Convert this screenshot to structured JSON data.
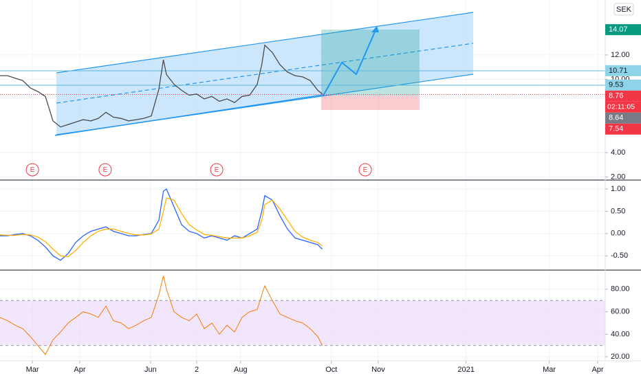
{
  "chart_data": [
    {
      "type": "line",
      "currency": "SEK",
      "color": "#4a4a4a",
      "x": [
        0,
        5,
        10,
        15,
        20,
        25,
        30,
        35,
        40,
        45,
        50,
        55,
        60,
        65,
        70,
        75,
        80,
        85,
        90,
        95,
        100,
        105,
        108,
        110,
        115,
        120,
        125,
        130,
        135,
        140,
        145,
        150,
        155,
        160,
        165,
        170,
        173,
        175,
        180,
        185,
        190,
        195,
        200,
        205,
        210,
        213
      ],
      "values": [
        10.3,
        10.3,
        10.1,
        9.9,
        9.3,
        9.0,
        8.6,
        6.6,
        6.1,
        6.3,
        6.5,
        6.7,
        6.6,
        6.8,
        7.3,
        6.9,
        6.8,
        6.6,
        6.7,
        6.8,
        7.0,
        9.2,
        11.6,
        10.4,
        9.6,
        9.1,
        8.7,
        8.8,
        8.4,
        8.6,
        8.2,
        8.4,
        8.1,
        8.6,
        8.7,
        9.6,
        11.2,
        12.8,
        12.2,
        11.2,
        10.6,
        10.3,
        10.2,
        9.9,
        9.1,
        8.8
      ],
      "xlim": [
        0,
        400
      ],
      "ylim": [
        1.75,
        16.5
      ],
      "yticks": [
        {
          "value": 2,
          "label": "2.00"
        },
        {
          "value": 4,
          "label": "4.00"
        },
        {
          "value": 10,
          "label": "10.00"
        },
        {
          "value": 12,
          "label": "12.00"
        }
      ],
      "price_labels": [
        {
          "value": 14.07,
          "color": "#089981",
          "text_color": "#ffffff"
        },
        {
          "value": 10.71,
          "color": "#8fd3e8",
          "text_color": "#131722"
        },
        {
          "value": 9.53,
          "color": "#8fd3e8",
          "text_color": "#131722"
        },
        {
          "value": 8.76,
          "color": "#f23645",
          "text_color": "#ffffff"
        },
        {
          "value": 8.64,
          "color": "#787b86",
          "text_color": "#ffffff"
        },
        {
          "value": 7.54,
          "color": "#f23645",
          "text_color": "#ffffff"
        }
      ],
      "countdown": "02:11:05",
      "earnings": [
        {
          "x": 21.4,
          "label": "E"
        },
        {
          "x": 69.5,
          "label": "E"
        },
        {
          "x": 143.2,
          "label": "E"
        },
        {
          "x": 241.4,
          "label": "E"
        }
      ]
    },
    {
      "type": "line",
      "ylim": [
        -0.82,
        1.2
      ],
      "yticks": [
        {
          "value": -0.5,
          "label": "-0.50"
        },
        {
          "value": 0,
          "label": "0.00"
        },
        {
          "value": 0.5,
          "label": "0.50"
        },
        {
          "value": 1,
          "label": "1.00"
        }
      ],
      "series": [
        {
          "color": "#2962ff",
          "values": [
            -0.05,
            -0.05,
            -0.02,
            0,
            -0.05,
            -0.15,
            -0.3,
            -0.5,
            -0.6,
            -0.45,
            -0.2,
            -0.05,
            0.05,
            0.1,
            0.15,
            0.05,
            0,
            -0.05,
            -0.05,
            -0.02,
            0,
            0.3,
            0.95,
            1.0,
            0.6,
            0.2,
            0.05,
            0,
            -0.1,
            -0.05,
            -0.1,
            -0.15,
            -0.05,
            -0.1,
            0,
            0.1,
            0.5,
            0.85,
            0.75,
            0.4,
            0.1,
            -0.1,
            -0.15,
            -0.2,
            -0.25,
            -0.35
          ]
        },
        {
          "color": "#ffb000",
          "values": [
            -0.03,
            -0.04,
            -0.04,
            -0.02,
            -0.03,
            -0.08,
            -0.18,
            -0.35,
            -0.5,
            -0.52,
            -0.38,
            -0.2,
            -0.05,
            0.05,
            0.1,
            0.1,
            0.05,
            0,
            -0.03,
            -0.03,
            -0.01,
            0.1,
            0.5,
            0.8,
            0.75,
            0.45,
            0.2,
            0.08,
            -0.02,
            -0.04,
            -0.07,
            -0.1,
            -0.1,
            -0.1,
            -0.05,
            0.03,
            0.3,
            0.65,
            0.75,
            0.55,
            0.3,
            0.05,
            -0.08,
            -0.15,
            -0.2,
            -0.28
          ]
        }
      ]
    },
    {
      "type": "line",
      "ylim": [
        16.4,
        97
      ],
      "band": [
        30,
        70
      ],
      "band_color": "#e9d5fb",
      "color": "#f57c00",
      "yticks": [
        {
          "value": 20,
          "label": "20.00"
        },
        {
          "value": 40,
          "label": "40.00"
        },
        {
          "value": 60,
          "label": "60.00"
        },
        {
          "value": 80,
          "label": "80.00"
        }
      ],
      "values": [
        55,
        52,
        48,
        45,
        38,
        30,
        22,
        35,
        42,
        50,
        55,
        60,
        58,
        55,
        65,
        52,
        50,
        45,
        48,
        52,
        55,
        75,
        92,
        80,
        60,
        55,
        52,
        58,
        45,
        50,
        40,
        48,
        42,
        55,
        60,
        62,
        75,
        83,
        70,
        58,
        55,
        52,
        50,
        45,
        38,
        30
      ],
      "xticks": [
        {
          "value": 21.4,
          "label": "Mar"
        },
        {
          "value": 52.7,
          "label": "Apr"
        },
        {
          "value": 99.5,
          "label": "Jun"
        },
        {
          "value": 130,
          "label": "2"
        },
        {
          "value": 159,
          "label": "Aug"
        },
        {
          "value": 219,
          "label": "Oct"
        },
        {
          "value": 250,
          "label": "Nov"
        },
        {
          "value": 308,
          "label": "2021"
        },
        {
          "value": 363,
          "label": "Mar"
        },
        {
          "value": 395,
          "label": "Apr"
        }
      ]
    }
  ]
}
